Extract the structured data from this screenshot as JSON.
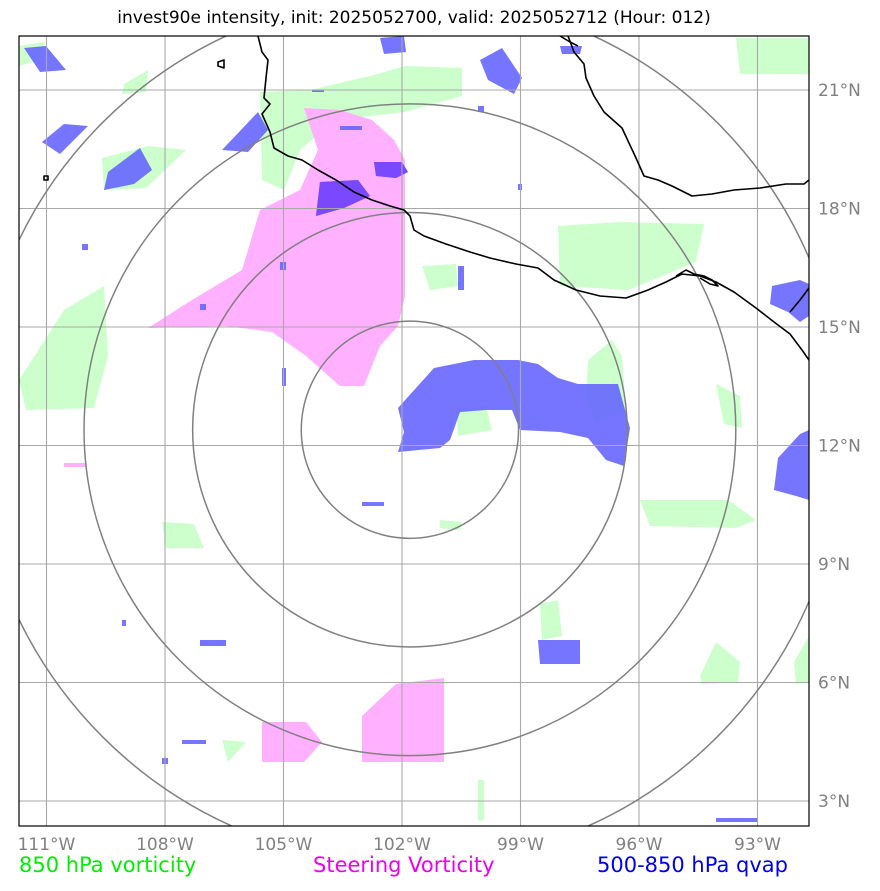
{
  "title": "invest90e intensity, init: 2025052700, valid: 2025052712 (Hour: 012)",
  "lon_ticks": [
    "111°W",
    "108°W",
    "105°W",
    "102°W",
    "99°W",
    "96°W",
    "93°W"
  ],
  "lat_ticks": [
    "21°N",
    "18°N",
    "15°N",
    "12°N",
    "9°N",
    "6°N",
    "3°N"
  ],
  "center": {
    "lon": -101.8,
    "lat": 12.4
  },
  "range_rings_deg": [
    2.75,
    5.5,
    8.25,
    11.0
  ],
  "legend": [
    {
      "label": "850 hPa vorticity",
      "color": "#00ee00"
    },
    {
      "label": "Steering Vorticity",
      "color": "#ee00ee"
    },
    {
      "label": "500-850 hPa qvap",
      "color": "#0000ee"
    }
  ],
  "colors": {
    "vort850": "#ccffcc",
    "steering": "#ffb0ff",
    "qvap": "#6666ff",
    "overlap": "#7a44ff",
    "coast": "#000000",
    "grid": "#a8a8a8",
    "rings": "#808080"
  }
}
